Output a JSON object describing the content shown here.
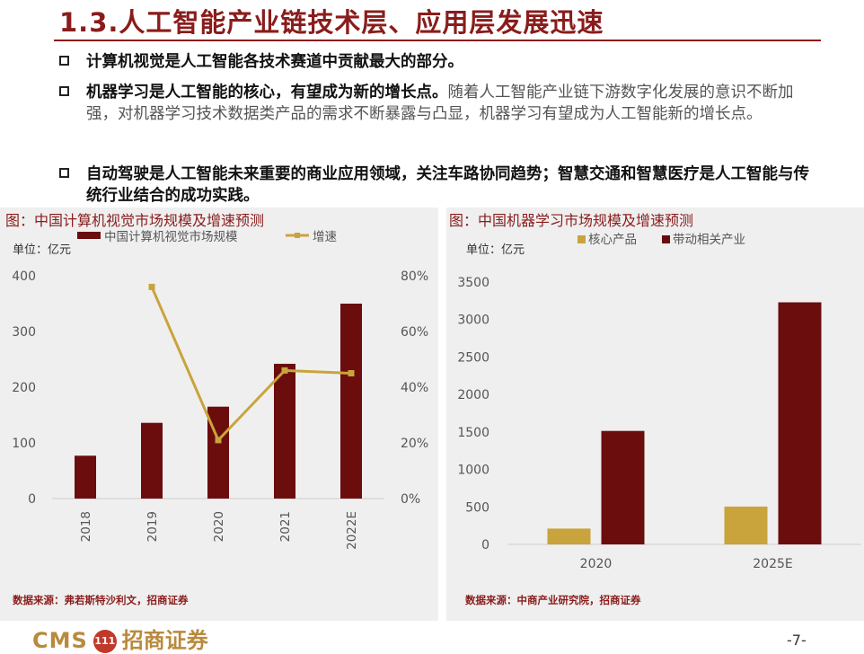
{
  "slide": {
    "title": "1.3.人工智能产业链技术层、应用层发展迅速",
    "bullets": [
      {
        "strong": "计算机视觉是人工智能各技术赛道中贡献最大的部分。",
        "rest": ""
      },
      {
        "strong": "机器学习是人工智能的核心，有望成为新的增长点。",
        "rest": "随着人工智能产业链下游数字化发展的意识不断加强，对机器学习技术数据类产品的需求不断暴露与凸显，机器学习有望成为人工智能新的增长点。"
      },
      {
        "strong": "自动驾驶是人工智能未来重要的商业应用领域，关注车路协同趋势；智慧交通和智慧医疗是人工智能与传统行业结合的成功实践。",
        "rest": ""
      }
    ],
    "page_number": "-7-",
    "logo": {
      "cms": "CMS",
      "badge": "111",
      "name": "招商证券"
    }
  },
  "chart_data": [
    {
      "type": "bar",
      "caption": "图：中国计算机视觉市场规模及增速预测",
      "unit": "单位：亿元",
      "categories": [
        "2018",
        "2019",
        "2020",
        "2021",
        "2022E"
      ],
      "series": [
        {
          "name": "中国计算机视觉市场规模",
          "type": "bar",
          "color": "#6b0d0d",
          "values": [
            77,
            136,
            165,
            242,
            350
          ]
        },
        {
          "name": "增速",
          "type": "line",
          "color": "#c9a43c",
          "axis": "right",
          "values": [
            null,
            76,
            21,
            46,
            45
          ]
        }
      ],
      "ylim": [
        0,
        400
      ],
      "yticks": [
        "0",
        "100",
        "200",
        "300",
        "400"
      ],
      "y2lim": [
        0,
        80
      ],
      "y2ticks": [
        "0%",
        "20%",
        "40%",
        "60%",
        "80%"
      ],
      "legend": "top",
      "source": "数据来源：弗若斯特沙利文，招商证券"
    },
    {
      "type": "bar",
      "caption": "图：中国机器学习市场规模及增速预测",
      "unit": "单位：亿元",
      "categories": [
        "2020",
        "2025E"
      ],
      "series": [
        {
          "name": "核心产品",
          "color": "#c9a43c",
          "values": [
            211,
            505
          ]
        },
        {
          "name": "带动相关产业",
          "color": "#6b0d0d",
          "values": [
            1514,
            3230
          ]
        }
      ],
      "ylim": [
        0,
        3500
      ],
      "yticks": [
        "0",
        "500",
        "1000",
        "1500",
        "2000",
        "2500",
        "3000",
        "3500"
      ],
      "legend": "top",
      "source": "数据来源：中商产业研究院，招商证券"
    }
  ]
}
